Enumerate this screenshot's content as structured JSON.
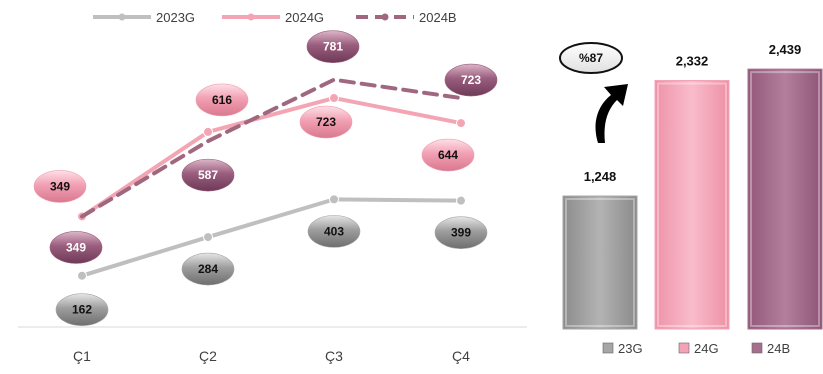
{
  "chart_data": [
    {
      "type": "line",
      "categories": [
        "Ç1",
        "Ç2",
        "Ç3",
        "Ç4"
      ],
      "series": [
        {
          "name": "2023G",
          "values": [
            162,
            284,
            403,
            399
          ],
          "color": "#bfbfbf",
          "label_color": "#a6a6a6",
          "dashed": false
        },
        {
          "name": "2024G",
          "values": [
            349,
            616,
            723,
            644
          ],
          "color": "#f4a5b4",
          "label_color": "#ef9fb1",
          "dashed": false
        },
        {
          "name": "2024B",
          "values": [
            349,
            587,
            781,
            723
          ],
          "color": "#a0687f",
          "label_color": "#9a5d7e",
          "dashed": true
        }
      ],
      "labels": [
        [
          "162",
          "284",
          "403",
          "399"
        ],
        [
          "349",
          "616",
          "723",
          "644"
        ],
        [
          "349",
          "587",
          "781",
          "723"
        ]
      ],
      "ylim": [
        0,
        900
      ],
      "grid": false,
      "legend": "top"
    },
    {
      "type": "bar",
      "categories": [
        "23G",
        "24G",
        "24B"
      ],
      "values": [
        1248,
        2332,
        2439
      ],
      "value_labels": [
        "1,248",
        "2,332",
        "2,439"
      ],
      "colors": [
        "#a6a6a6",
        "#f4a3b6",
        "#a66e8d"
      ],
      "ylim": [
        0,
        2900
      ],
      "legend": "bottom",
      "annotation": {
        "text": "%87"
      }
    }
  ]
}
